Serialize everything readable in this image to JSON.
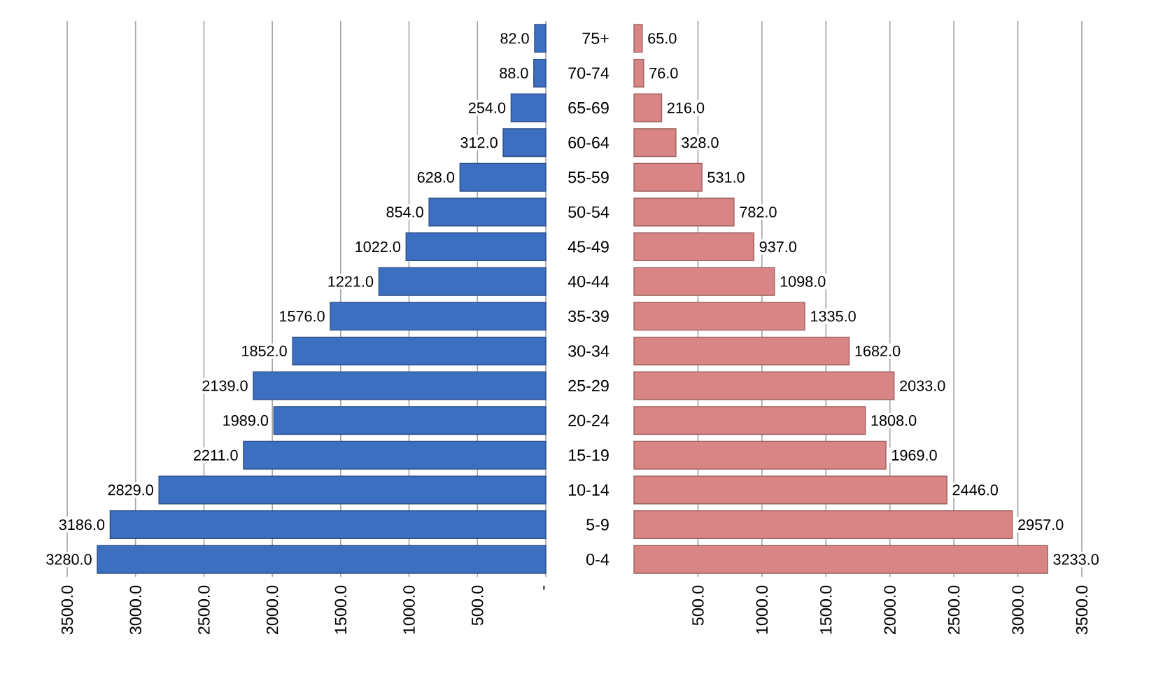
{
  "chart_data": [
    {
      "type": "bar",
      "orientation": "horizontal",
      "categories": [
        null,
        null,
        null,
        null,
        null,
        null,
        null,
        null,
        null,
        null,
        null,
        null,
        null,
        null,
        null,
        null
      ],
      "values": [
        82,
        88,
        254,
        312,
        628,
        854,
        1022,
        1221,
        1576,
        1852,
        2139,
        1989,
        2211,
        2829,
        3186,
        3280
      ],
      "value_labels": [
        "82.0",
        "88.0",
        "254.0",
        "312.0",
        "628.0",
        "854.0",
        "1022.0",
        "1221.0",
        "1576.0",
        "1852.0",
        "2139.0",
        "1989.0",
        "2211.0",
        "2829.0",
        "3186.0",
        "3280.0"
      ],
      "color": "#3d6fc0",
      "xlim": [
        3500,
        0
      ],
      "xticks": [
        {
          "value": 3500,
          "label": "3500.0"
        },
        {
          "value": 3000,
          "label": "3000.0"
        },
        {
          "value": 2500,
          "label": "2500.0"
        },
        {
          "value": 2000,
          "label": "2000.0"
        },
        {
          "value": 1500,
          "label": "1500.0"
        },
        {
          "value": 1000,
          "label": "1000.0"
        },
        {
          "value": 500,
          "label": "500.0"
        },
        {
          "value": 0,
          "label": "-"
        }
      ],
      "grid": "x",
      "tick_labels": "x"
    },
    {
      "type": "bar",
      "orientation": "horizontal",
      "categories": [
        "75+",
        "70-74",
        "65-69",
        "60-64",
        "55-59",
        "50-54",
        "45-49",
        "40-44",
        "35-39",
        "30-34",
        "25-29",
        "20-24",
        "15-19",
        "10-14",
        "5-9",
        "0-4"
      ],
      "values": [
        65,
        76,
        216,
        328,
        531,
        782,
        937,
        1098,
        1335,
        1682,
        2033,
        1808,
        1969,
        2446,
        2957,
        3233
      ],
      "value_labels": [
        "65.0",
        "76.0",
        "216.0",
        "328.0",
        "531.0",
        "782.0",
        "937.0",
        "1098.0",
        "1335.0",
        "1682.0",
        "2033.0",
        "1808.0",
        "1969.0",
        "2446.0",
        "2957.0",
        "3233.0"
      ],
      "color": "#d98585",
      "xlim": [
        0,
        3500
      ],
      "xticks": [
        {
          "value": 500,
          "label": "500.0"
        },
        {
          "value": 1000,
          "label": "1000.0"
        },
        {
          "value": 1500,
          "label": "1500.0"
        },
        {
          "value": 2000,
          "label": "2000.0"
        },
        {
          "value": 2500,
          "label": "2500.0"
        },
        {
          "value": 3000,
          "label": "3000.0"
        },
        {
          "value": 3500,
          "label": "3500.0"
        }
      ],
      "grid": "x"
    }
  ]
}
